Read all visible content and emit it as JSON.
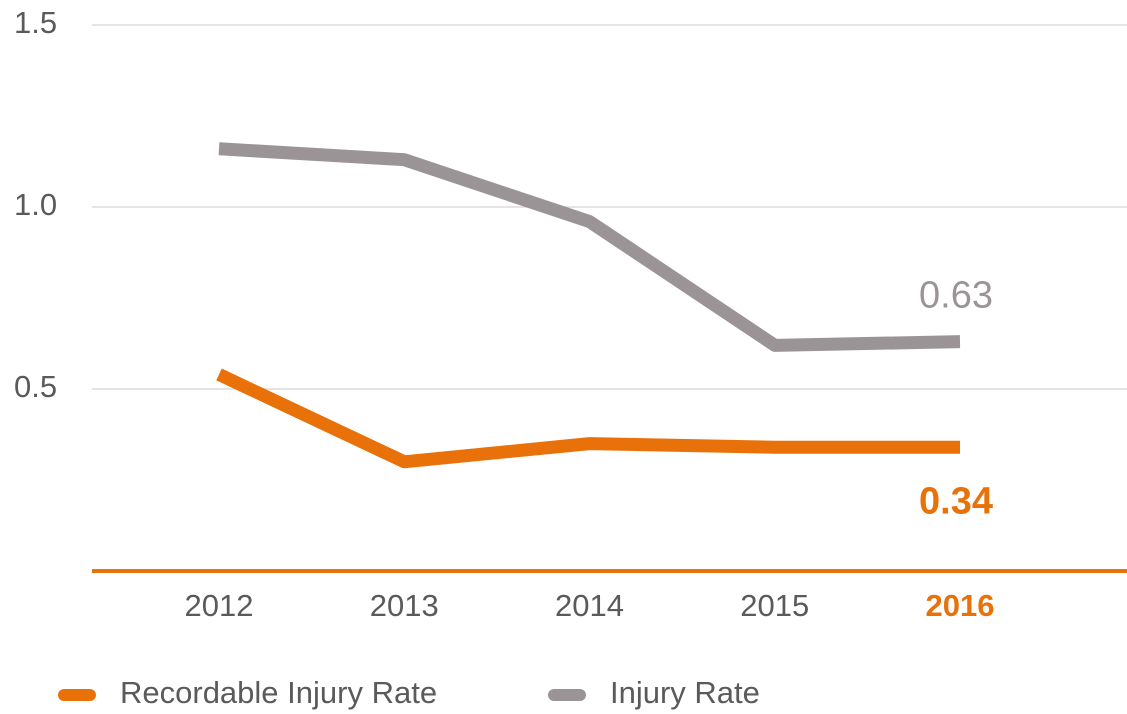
{
  "chart_data": {
    "type": "line",
    "categories": [
      "2012",
      "2013",
      "2014",
      "2015",
      "2016"
    ],
    "series": [
      {
        "name": "Recordable Injury Rate",
        "color": "#e8710a",
        "values": [
          0.54,
          0.3,
          0.35,
          0.34,
          0.34
        ],
        "value_labels": [
          null,
          null,
          null,
          null,
          "0.34"
        ]
      },
      {
        "name": "Injury Rate",
        "color": "#9b9496",
        "values": [
          1.16,
          1.13,
          0.96,
          0.62,
          0.63
        ],
        "value_labels": [
          null,
          null,
          null,
          null,
          "0.63"
        ]
      }
    ],
    "ylim": [
      0,
      1.5
    ],
    "yticks": [
      0.5,
      {
        "value": 1,
        "label": "1.0"
      },
      1.5
    ],
    "grid": true,
    "highlight_last_category": true,
    "legend": "bottom"
  }
}
